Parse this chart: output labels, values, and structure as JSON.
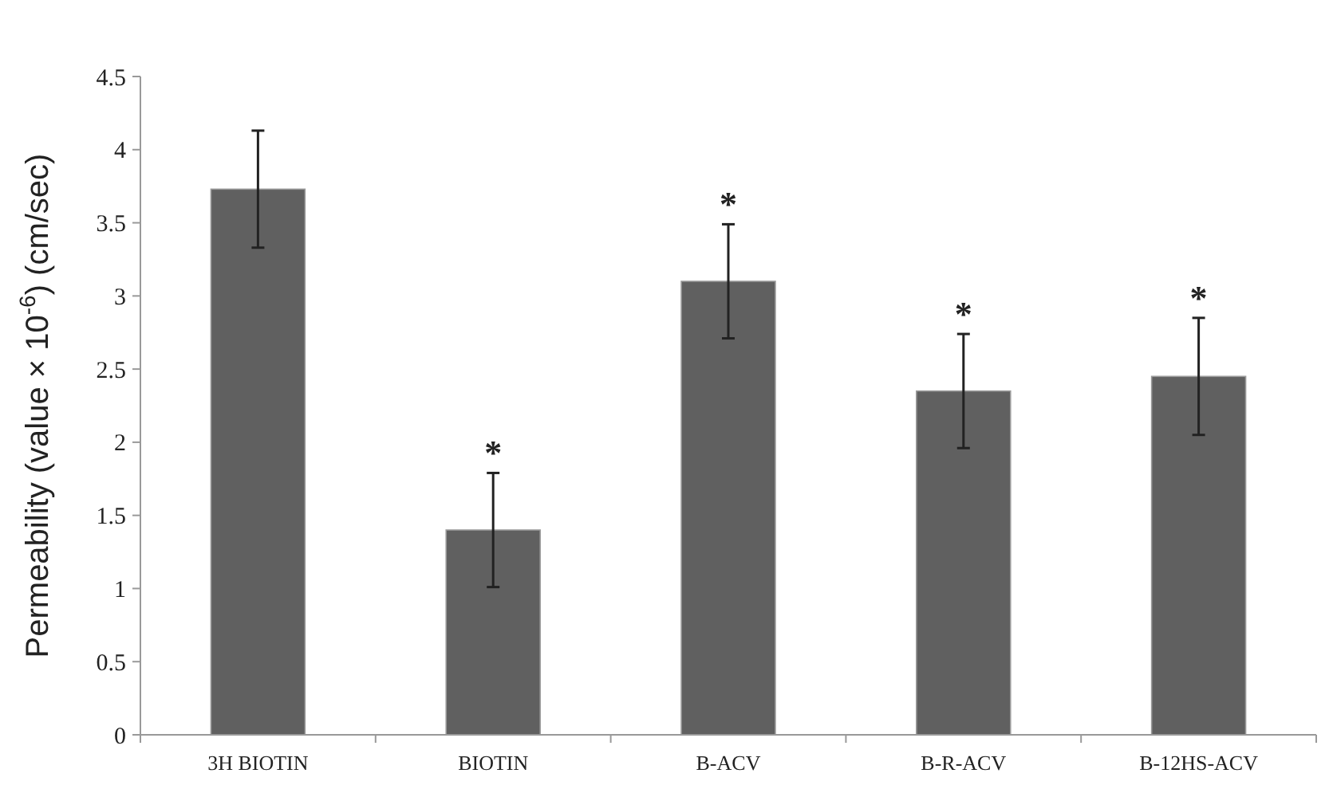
{
  "chart_data": {
    "type": "bar",
    "ylabel": "Permeability (value × 10$^{-6}$) (cm/sec)",
    "categories": [
      "3H BIOTIN",
      "BIOTIN",
      "B-ACV",
      "B-R-ACV",
      "B-12HS-ACV"
    ],
    "values": [
      3.73,
      1.4,
      3.1,
      2.35,
      2.45
    ],
    "errors": [
      0.4,
      0.39,
      0.39,
      0.39,
      0.4
    ],
    "color": "#606060",
    "ylim": [
      0,
      4.5
    ],
    "yticks": [
      0,
      0.5,
      1,
      1.5,
      2,
      2.5,
      3,
      3.5,
      4,
      4.5
    ],
    "grid": false,
    "annotations": [
      {
        "text": "*",
        "x": "BIOTIN",
        "y": 1.79
      },
      {
        "text": "*",
        "x": "B-ACV",
        "y": 3.49
      },
      {
        "text": "*",
        "x": "B-R-ACV",
        "y": 2.74
      },
      {
        "text": "*",
        "x": "B-12HS-ACV",
        "y": 2.85
      }
    ]
  }
}
